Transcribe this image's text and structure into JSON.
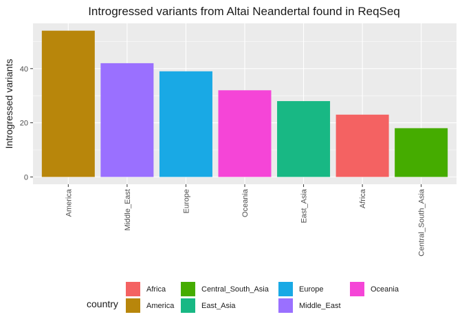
{
  "chart_data": {
    "type": "bar",
    "title": "Introgressed variants from Altai Neandertal found in ReqSeq",
    "xlabel": "",
    "ylabel": "Introgressed variants",
    "categories": [
      "America",
      "Middle_East",
      "Europe",
      "Oceania",
      "East_Asia",
      "Africa",
      "Central_South_Asia"
    ],
    "values": [
      54,
      42,
      39,
      32,
      28,
      23,
      18
    ],
    "bar_colors": [
      "#B8860B",
      "#9A70FF",
      "#19A9E5",
      "#F545D7",
      "#18B884",
      "#F46262",
      "#45AC00"
    ],
    "y_ticks": [
      0,
      20,
      40
    ],
    "ylim": [
      -2.7,
      56.7
    ],
    "grid": true,
    "panel_background": "#EBEBEB",
    "legend": {
      "title": "country",
      "position": "bottom",
      "items": [
        {
          "label": "Africa",
          "color": "#F46262"
        },
        {
          "label": "America",
          "color": "#B8860B"
        },
        {
          "label": "Central_South_Asia",
          "color": "#45AC00"
        },
        {
          "label": "East_Asia",
          "color": "#18B884"
        },
        {
          "label": "Europe",
          "color": "#19A9E5"
        },
        {
          "label": "Middle_East",
          "color": "#9A70FF"
        },
        {
          "label": "Oceania",
          "color": "#F545D7"
        }
      ]
    }
  }
}
